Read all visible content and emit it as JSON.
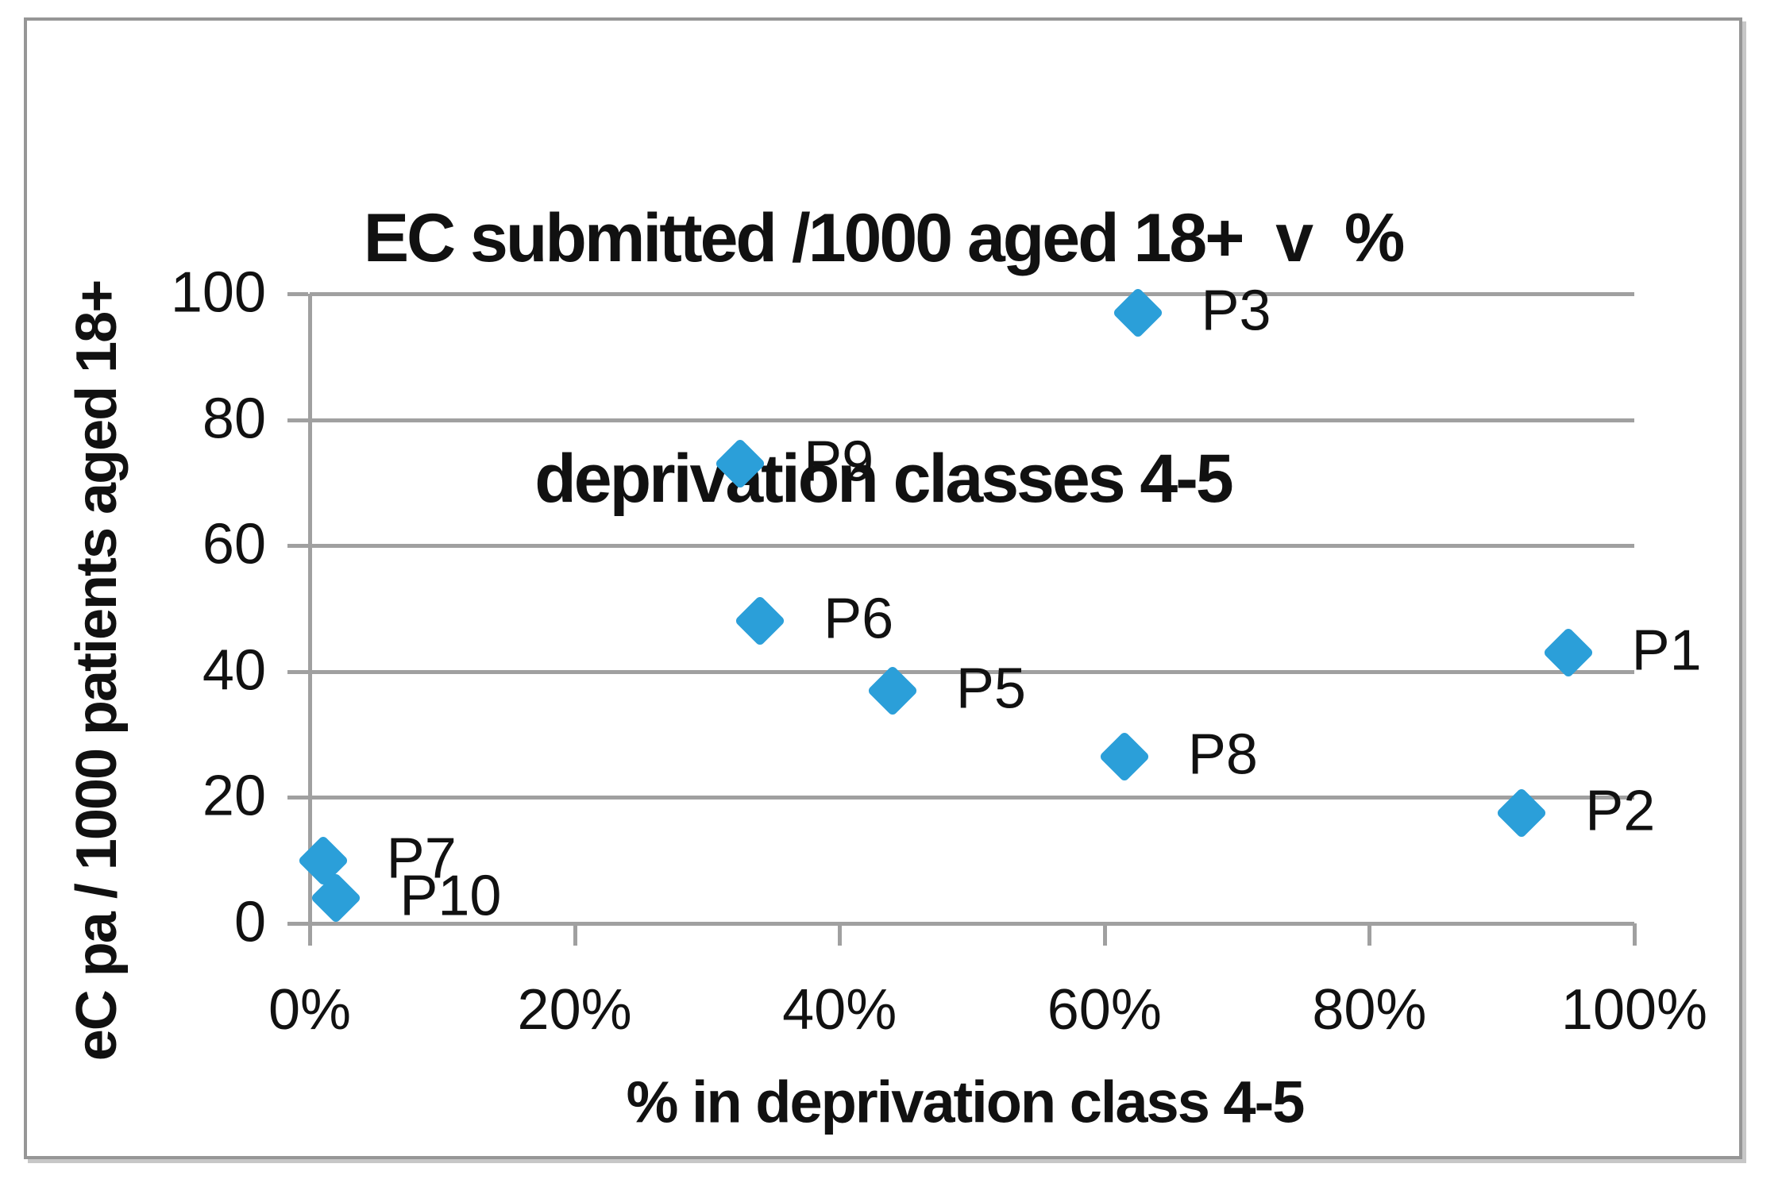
{
  "chart_data": {
    "type": "scatter",
    "title": "EC submitted /1000 aged 18+  v  % deprivation classes 4-5",
    "title_lines": [
      "EC submitted /1000 aged 18+  v  %",
      "deprivation classes 4-5"
    ],
    "xlabel": "% in deprivation class 4-5",
    "ylabel": "eC pa / 1000 patients aged 18+",
    "xlim": [
      0,
      100
    ],
    "ylim": [
      0,
      100
    ],
    "x_tick_values": [
      0,
      20,
      40,
      60,
      80,
      100
    ],
    "x_tick_labels": [
      "0%",
      "20%",
      "40%",
      "60%",
      "80%",
      "100%"
    ],
    "y_tick_values": [
      0,
      20,
      40,
      60,
      80,
      100
    ],
    "y_tick_labels": [
      "0",
      "20",
      "40",
      "60",
      "80",
      "100"
    ],
    "grid": "horizontal-only",
    "legend": "none",
    "marker": {
      "shape": "diamond",
      "color": "#2B9FD9"
    },
    "axis_color": "#A0A0A0",
    "points": [
      {
        "label": "P1",
        "x": 95,
        "y": 43
      },
      {
        "label": "P2",
        "x": 91.5,
        "y": 17.5
      },
      {
        "label": "P3",
        "x": 62.5,
        "y": 97
      },
      {
        "label": "P5",
        "x": 44,
        "y": 37
      },
      {
        "label": "P6",
        "x": 34,
        "y": 48
      },
      {
        "label": "P7",
        "x": 1,
        "y": 10
      },
      {
        "label": "P8",
        "x": 61.5,
        "y": 26.5
      },
      {
        "label": "P9",
        "x": 32.5,
        "y": 73
      },
      {
        "label": "P10",
        "x": 2,
        "y": 4
      }
    ]
  }
}
